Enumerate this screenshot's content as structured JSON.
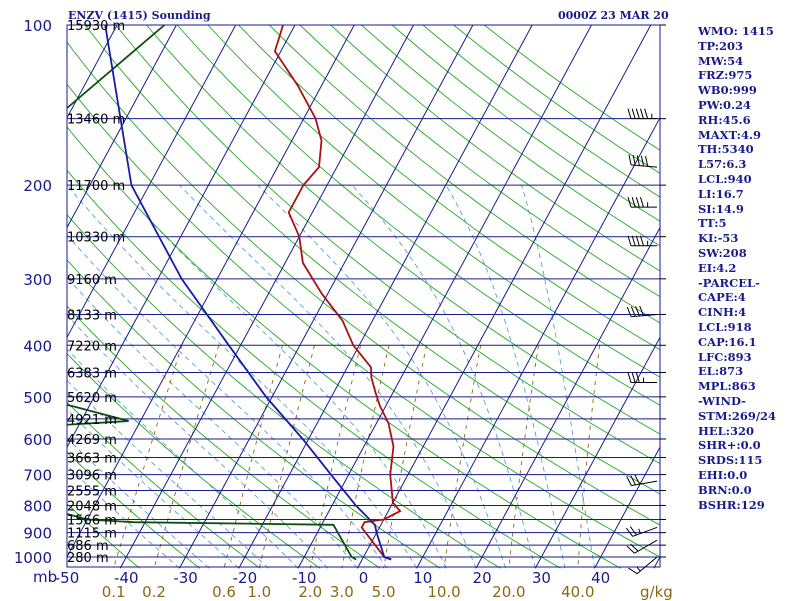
{
  "header": {
    "title": "ENZV (1415) Sounding",
    "datetime": "0000Z 23 MAR 20"
  },
  "indices": [
    "WMO: 1415",
    "TP:203",
    "MW:54",
    "FRZ:975",
    "WB0:999",
    "PW:0.24",
    "RH:45.6",
    "MAXT:4.9",
    "TH:5340",
    "L57:6.3",
    "LCL:940",
    "LI:16.7",
    "SI:14.9",
    "TT:5",
    "KI:-53",
    "SW:208",
    "EI:4.2",
    "-PARCEL-",
    "CAPE:4",
    "CINH:4",
    "LCL:918",
    "CAP:16.1",
    "LFC:893",
    "EL:873",
    "MPL:863",
    "-WIND-",
    "STM:269/24",
    "HEL:320",
    "SHR+:0.0",
    "SRDS:115",
    "EHI:0.0",
    "BRN:0.0",
    "BSHR:129"
  ],
  "axis_units": {
    "pressure": "mb",
    "mixing_ratio": "g/kg"
  },
  "colors": {
    "temperature": "#aa1111",
    "dewpoint": "#0d4d0d",
    "parcel": "#1a1aa8",
    "isobar": "#1a1a8c",
    "isotherm": "#1a1a8c",
    "dry_adiabat": "#22aa22",
    "moist_adiabat": "#5aa0d0",
    "mixing_ratio": "#8b6914",
    "text_blue": "#1a1a8c",
    "text_gold": "#8b6914"
  },
  "chart_data": {
    "type": "line",
    "subtype": "skew-T log-P sounding",
    "title": "ENZV (1415) Sounding",
    "xlabel": "",
    "ylabel": "mb",
    "xlim": [
      -50,
      50
    ],
    "ylim": [
      1050,
      100
    ],
    "y_scale": "log",
    "pressure_ticks": [
      100,
      200,
      300,
      400,
      500,
      600,
      700,
      800,
      900,
      1000
    ],
    "temperature_ticks": [
      -50,
      -40,
      -30,
      -20,
      -10,
      0,
      10,
      20,
      30,
      40
    ],
    "mixing_ratio_ticks": [
      {
        "label": "0.1",
        "value": 0.1
      },
      {
        "label": "0.2",
        "value": 0.2
      },
      {
        "label": "0.6",
        "value": 0.6
      },
      {
        "label": "1.0",
        "value": 1.0
      },
      {
        "label": "2.0",
        "value": 2.0
      },
      {
        "label": "3.0",
        "value": 3.0
      },
      {
        "label": "5.0",
        "value": 5.0
      },
      {
        "label": "10.0",
        "value": 10.0
      },
      {
        "label": "20.0",
        "value": 20.0
      },
      {
        "label": "40.0",
        "value": 40.0
      }
    ],
    "height_labels": [
      {
        "p": 100,
        "h": "15930 m"
      },
      {
        "p": 150,
        "h": "13460 m"
      },
      {
        "p": 200,
        "h": "11700 m"
      },
      {
        "p": 250,
        "h": "10330 m"
      },
      {
        "p": 300,
        "h": "9160 m"
      },
      {
        "p": 350,
        "h": "8133 m"
      },
      {
        "p": 400,
        "h": "7220 m"
      },
      {
        "p": 450,
        "h": "6383 m"
      },
      {
        "p": 500,
        "h": "5620 m"
      },
      {
        "p": 550,
        "h": "4921 m"
      },
      {
        "p": 600,
        "h": "4269 m"
      },
      {
        "p": 650,
        "h": "3663 m"
      },
      {
        "p": 700,
        "h": "3096 m"
      },
      {
        "p": 750,
        "h": "2555 m"
      },
      {
        "p": 800,
        "h": "2048 m"
      },
      {
        "p": 850,
        "h": "1566 m"
      },
      {
        "p": 900,
        "h": "1115 m"
      },
      {
        "p": 950,
        "h": "686 m"
      },
      {
        "p": 1000,
        "h": "280 m"
      }
    ],
    "series": [
      {
        "id": "temperature",
        "points": [
          [
            100,
            -62
          ],
          [
            112,
            -61
          ],
          [
            130,
            -54
          ],
          [
            150,
            -48
          ],
          [
            165,
            -45
          ],
          [
            185,
            -43
          ],
          [
            200,
            -44
          ],
          [
            225,
            -44
          ],
          [
            250,
            -40
          ],
          [
            280,
            -37
          ],
          [
            320,
            -31
          ],
          [
            360,
            -25
          ],
          [
            400,
            -21
          ],
          [
            440,
            -16
          ],
          [
            460,
            -15
          ],
          [
            490,
            -13
          ],
          [
            520,
            -11
          ],
          [
            560,
            -8
          ],
          [
            620,
            -5
          ],
          [
            700,
            -3
          ],
          [
            790,
            0
          ],
          [
            820,
            2
          ],
          [
            850,
            0
          ],
          [
            860,
            -3
          ],
          [
            880,
            -3
          ],
          [
            1000,
            3.5
          ],
          [
            1011,
            4.9
          ]
        ]
      },
      {
        "id": "dewpoint",
        "points": [
          [
            100,
            -82
          ],
          [
            150,
            -92
          ],
          [
            200,
            -90
          ],
          [
            225,
            -90
          ],
          [
            265,
            -98
          ],
          [
            275,
            -87
          ],
          [
            285,
            -87
          ],
          [
            310,
            -87
          ],
          [
            360,
            -80
          ],
          [
            400,
            -77
          ],
          [
            440,
            -73
          ],
          [
            450,
            -101
          ],
          [
            480,
            -82
          ],
          [
            520,
            -63
          ],
          [
            555,
            -52
          ],
          [
            565,
            -63
          ],
          [
            630,
            -80
          ],
          [
            670,
            -78
          ],
          [
            700,
            -65
          ],
          [
            745,
            -67
          ],
          [
            800,
            -60
          ],
          [
            850,
            -50
          ],
          [
            860,
            -42
          ],
          [
            870,
            -8
          ],
          [
            1000,
            -2
          ],
          [
            1011,
            -1
          ]
        ]
      },
      {
        "id": "parcel",
        "points": [
          [
            100,
            -92
          ],
          [
            200,
            -73
          ],
          [
            300,
            -56
          ],
          [
            400,
            -42
          ],
          [
            500,
            -31
          ],
          [
            600,
            -21
          ],
          [
            700,
            -13
          ],
          [
            800,
            -6
          ],
          [
            870,
            -1
          ],
          [
            900,
            0
          ],
          [
            1000,
            3.5
          ],
          [
            1011,
            4.9
          ]
        ]
      }
    ],
    "wind_barbs": [
      {
        "p": 150,
        "dir": 270,
        "speed_kt": 55
      },
      {
        "p": 185,
        "dir": 275,
        "speed_kt": 50
      },
      {
        "p": 220,
        "dir": 270,
        "speed_kt": 45
      },
      {
        "p": 260,
        "dir": 270,
        "speed_kt": 45
      },
      {
        "p": 350,
        "dir": 265,
        "speed_kt": 40
      },
      {
        "p": 470,
        "dir": 270,
        "speed_kt": 35
      },
      {
        "p": 720,
        "dir": 260,
        "speed_kt": 30
      },
      {
        "p": 880,
        "dir": 250,
        "speed_kt": 25
      },
      {
        "p": 930,
        "dir": 240,
        "speed_kt": 20
      },
      {
        "p": 1000,
        "dir": 230,
        "speed_kt": 15
      }
    ]
  }
}
